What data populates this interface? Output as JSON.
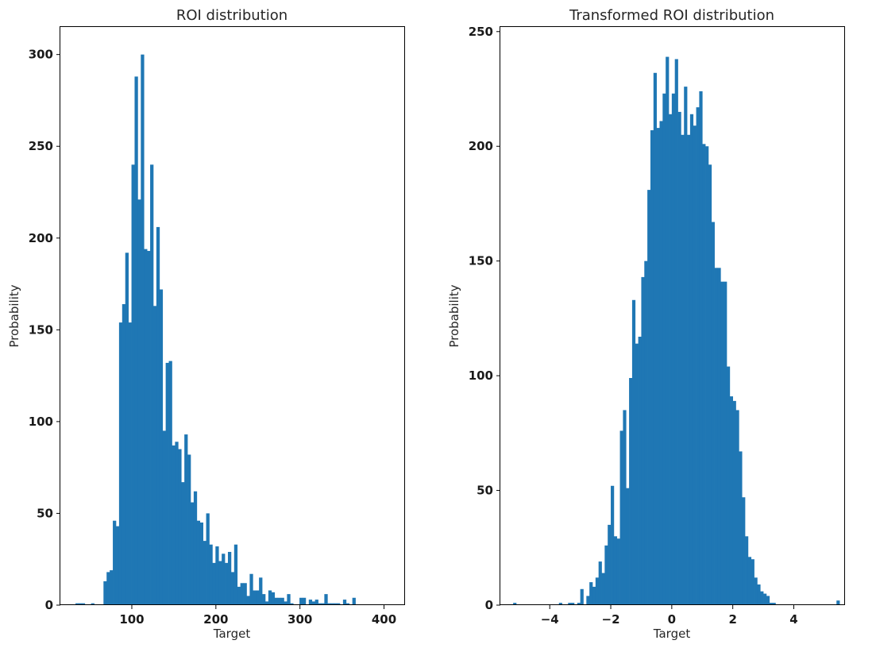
{
  "chart_data": [
    {
      "type": "bar",
      "title": "ROI distribution",
      "xlabel": "Target",
      "ylabel": "Probability",
      "xlim": [
        15,
        425
      ],
      "ylim": [
        0,
        315
      ],
      "x_ticks": [
        100,
        200,
        300,
        400
      ],
      "y_ticks": [
        0,
        50,
        100,
        150,
        200,
        250,
        300
      ],
      "grid": false,
      "color": "#1f77b4",
      "bin_start": 33,
      "bin_width": 3.7,
      "values": [
        1,
        1,
        1,
        0,
        0,
        1,
        0,
        0,
        0,
        13,
        18,
        19,
        46,
        43,
        154,
        164,
        192,
        154,
        240,
        288,
        221,
        300,
        194,
        193,
        240,
        163,
        206,
        172,
        95,
        132,
        133,
        87,
        89,
        85,
        67,
        93,
        82,
        56,
        62,
        46,
        45,
        35,
        50,
        33,
        23,
        32,
        24,
        28,
        23,
        29,
        18,
        33,
        10,
        12,
        12,
        5,
        17,
        8,
        8,
        15,
        6,
        2,
        8,
        7,
        4,
        4,
        4,
        2,
        6,
        1,
        0,
        0,
        4,
        4,
        0,
        3,
        2,
        3,
        1,
        1,
        6,
        1,
        1,
        1,
        1,
        0,
        3,
        1,
        0,
        4
      ]
    },
    {
      "type": "bar",
      "title": "Transformed ROI distribution",
      "xlabel": "Target",
      "ylabel": "Probability",
      "xlim": [
        -5.62,
        5.68
      ],
      "ylim": [
        0,
        252
      ],
      "x_ticks": [
        -4,
        -2,
        0,
        2,
        4
      ],
      "x_tick_labels": [
        "−4",
        "−2",
        "0",
        "2",
        "4"
      ],
      "y_ticks": [
        0,
        50,
        100,
        150,
        200,
        250
      ],
      "grid": false,
      "color": "#1f77b4",
      "bin_start": -5.2,
      "bin_width": 0.1,
      "values": [
        1,
        0,
        0,
        0,
        0,
        0,
        0,
        0,
        0,
        0,
        0,
        0,
        0,
        0,
        0,
        1,
        0,
        0,
        1,
        1,
        0,
        1,
        7,
        0,
        4,
        10,
        8,
        12,
        19,
        14,
        26,
        35,
        52,
        30,
        29,
        76,
        85,
        51,
        99,
        133,
        114,
        117,
        143,
        150,
        181,
        207,
        232,
        208,
        211,
        223,
        239,
        214,
        223,
        238,
        215,
        205,
        226,
        205,
        214,
        209,
        217,
        224,
        201,
        200,
        192,
        167,
        147,
        147,
        141,
        141,
        104,
        91,
        89,
        85,
        67,
        47,
        30,
        21,
        20,
        12,
        9,
        6,
        5,
        4,
        1,
        1,
        0,
        0,
        0,
        0,
        0,
        0,
        0,
        0,
        0,
        0,
        0,
        0,
        0,
        0,
        0,
        0,
        0,
        0,
        0,
        0,
        2
      ]
    }
  ]
}
